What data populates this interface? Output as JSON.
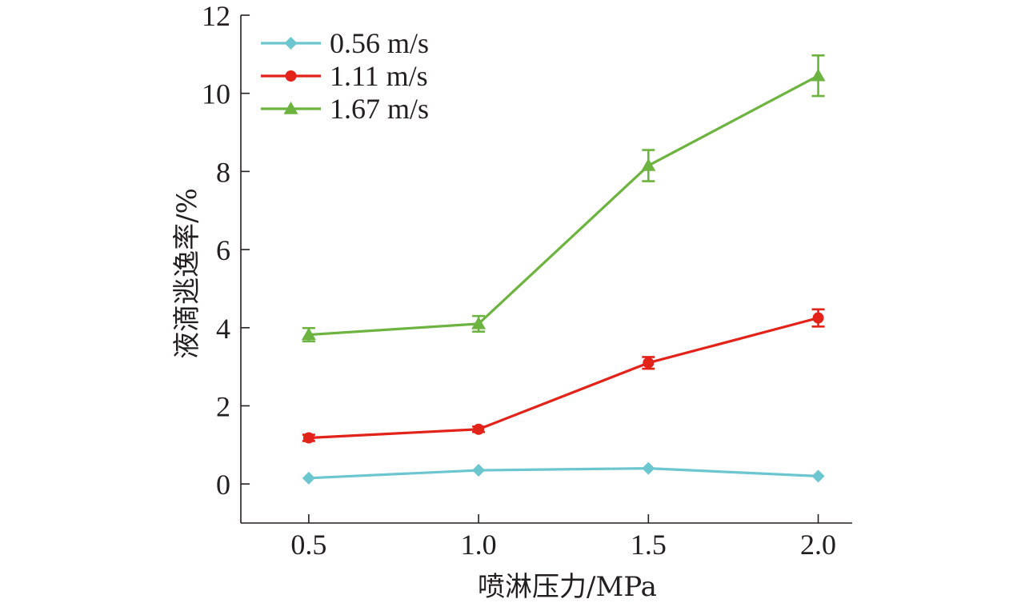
{
  "chart_data": {
    "type": "line",
    "title": "",
    "xlabel": "喷淋压力/MPa",
    "ylabel": "液滴逃逸率/%",
    "x": [
      0.5,
      1.0,
      1.5,
      2.0
    ],
    "x_tick_labels": [
      "0.5",
      "1.0",
      "1.5",
      "2.0"
    ],
    "y_ticks": [
      0,
      2,
      4,
      6,
      8,
      10,
      12
    ],
    "y_tick_labels": [
      "0",
      "2",
      "4",
      "6",
      "8",
      "10",
      "12"
    ],
    "xlim": [
      0.3,
      2.1
    ],
    "ylim": [
      -1,
      12
    ],
    "grid": false,
    "legend_position": "top-left",
    "series": [
      {
        "name": "0.56 m/s",
        "color": "#6cc6cf",
        "marker": "diamond",
        "values": [
          0.15,
          0.35,
          0.4,
          0.2
        ],
        "errors": [
          0,
          0,
          0,
          0
        ]
      },
      {
        "name": "1.11 m/s",
        "color": "#e2231a",
        "marker": "circle",
        "values": [
          1.18,
          1.4,
          3.1,
          4.25
        ],
        "errors": [
          0.08,
          0.07,
          0.15,
          0.22
        ]
      },
      {
        "name": "1.67 m/s",
        "color": "#6db33f",
        "marker": "triangle",
        "values": [
          3.82,
          4.1,
          8.15,
          10.45
        ],
        "errors": [
          0.17,
          0.2,
          0.4,
          0.52
        ]
      }
    ]
  }
}
